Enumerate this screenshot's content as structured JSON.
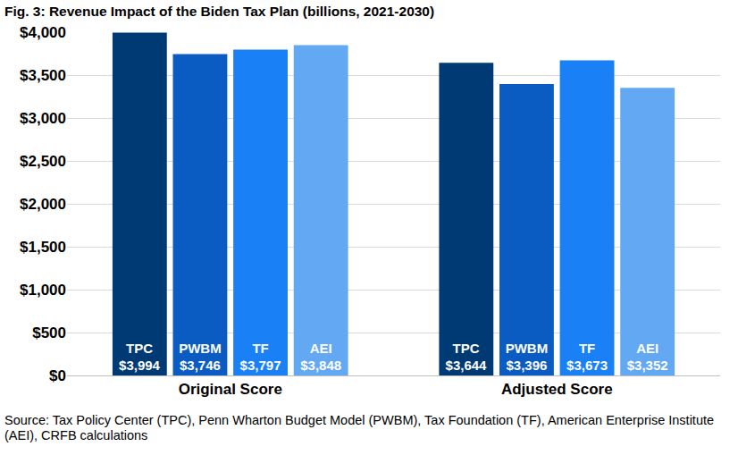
{
  "chart_data": {
    "type": "bar",
    "title": "Fig. 3: Revenue Impact of the Biden Tax Plan (billions, 2021-2030)",
    "categories": [
      "Original Score",
      "Adjusted Score"
    ],
    "series": [
      {
        "name": "TPC",
        "color": "#003a75",
        "values": [
          3994,
          3644
        ],
        "value_labels": [
          "$3,994",
          "$3,644"
        ]
      },
      {
        "name": "PWBM",
        "color": "#0a5cc2",
        "values": [
          3746,
          3396
        ],
        "value_labels": [
          "$3,746",
          "$3,396"
        ]
      },
      {
        "name": "TF",
        "color": "#1a80f5",
        "values": [
          3797,
          3673
        ],
        "value_labels": [
          "$3,797",
          "$3,673"
        ]
      },
      {
        "name": "AEI",
        "color": "#62a8f2",
        "values": [
          3848,
          3352
        ],
        "value_labels": [
          "$3,848",
          "$3,352"
        ]
      }
    ],
    "ylim": [
      0,
      4000
    ],
    "yticks": [
      {
        "value": 0,
        "label": "$0"
      },
      {
        "value": 500,
        "label": "$500"
      },
      {
        "value": 1000,
        "label": "$1,000"
      },
      {
        "value": 1500,
        "label": "$1,500"
      },
      {
        "value": 2000,
        "label": "$2,000"
      },
      {
        "value": 2500,
        "label": "$2,500"
      },
      {
        "value": 3000,
        "label": "$3,000"
      },
      {
        "value": 3500,
        "label": "$3,500"
      },
      {
        "value": 4000,
        "label": "$4,000"
      }
    ],
    "grid": true,
    "data_labels": true,
    "annotations": [
      "Source: Tax Policy Center (TPC), Penn Wharton Budget Model (PWBM), Tax Foundation (TF), American Enterprise Institute (AEI), CRFB calculations"
    ]
  }
}
